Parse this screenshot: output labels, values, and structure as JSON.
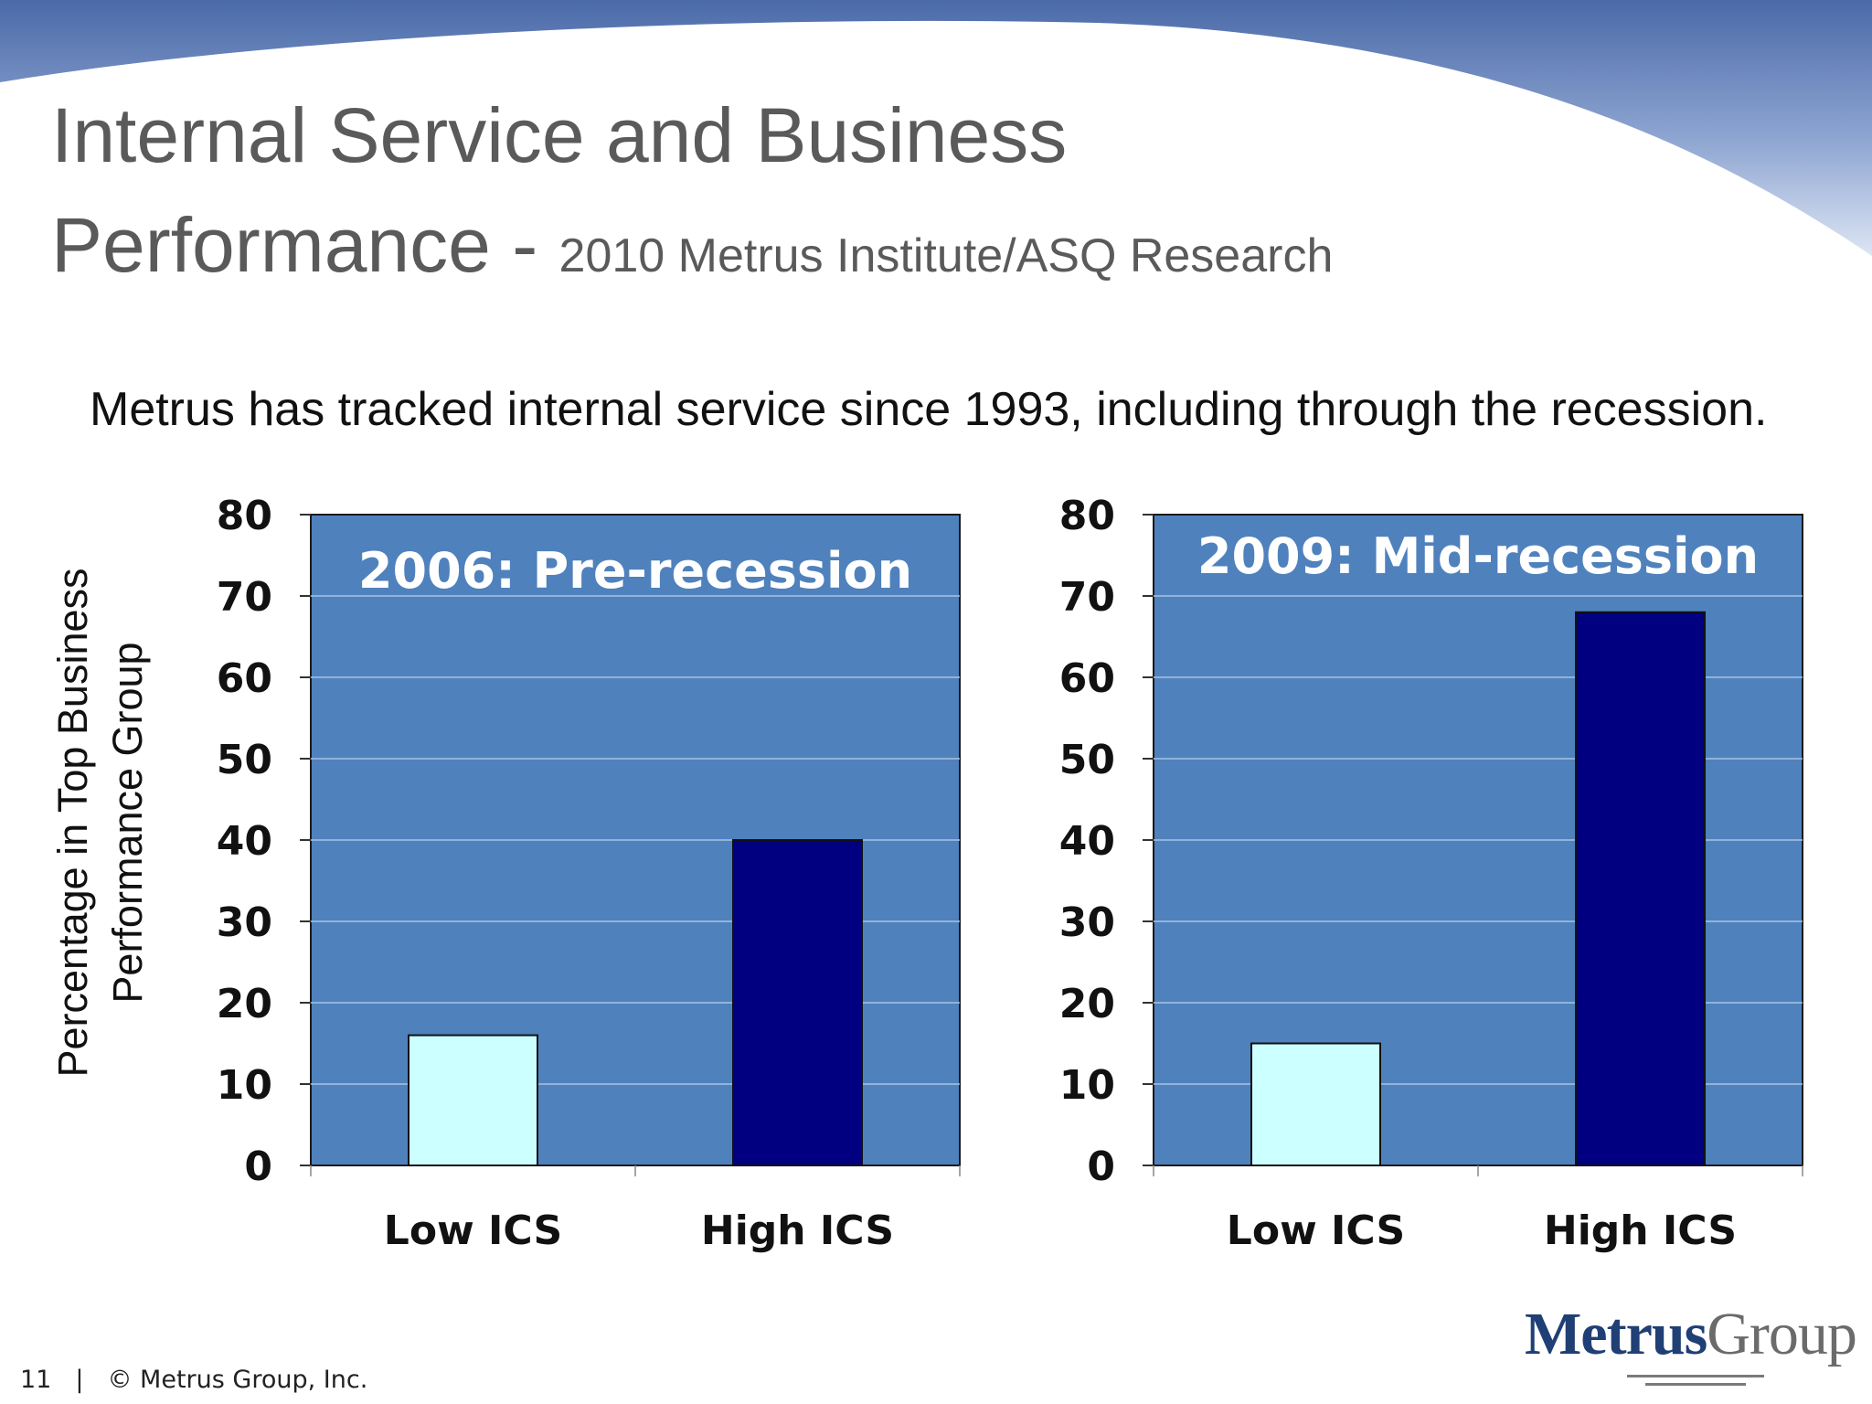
{
  "slide": {
    "title_main": "Internal Service and Business",
    "title_line2": "Performance -",
    "title_sub": "2010 Metrus Institute/ASQ Research",
    "intro": "Metrus has tracked internal service since 1993, including through the recession.",
    "ylabel_line1": "Percentage in Top Business",
    "ylabel_line2": "Performance Group",
    "footer_page": "11",
    "footer_sep": "|",
    "footer_copyright": "© Metrus Group, Inc.",
    "logo_metrus": "Metrus",
    "logo_group": "Group"
  },
  "colors": {
    "plot_bg": "#4f81bd",
    "low_ics": "#ccffff",
    "high_ics": "#000080",
    "title_text": "#5a5a5a",
    "header_band": "#4a6aa8"
  },
  "chart_data": [
    {
      "type": "bar",
      "title": "2006: Pre-recession",
      "categories": [
        "Low ICS",
        "High ICS"
      ],
      "values": [
        16,
        40
      ],
      "ylim": [
        0,
        80
      ],
      "yticks": [
        0,
        10,
        20,
        30,
        40,
        50,
        60,
        70,
        80
      ],
      "grid": true,
      "bar_colors": [
        "#ccffff",
        "#000080"
      ]
    },
    {
      "type": "bar",
      "title": "2009: Mid-recession",
      "categories": [
        "Low ICS",
        "High ICS"
      ],
      "values": [
        15,
        68
      ],
      "ylim": [
        0,
        80
      ],
      "yticks": [
        0,
        10,
        20,
        30,
        40,
        50,
        60,
        70,
        80
      ],
      "grid": true,
      "bar_colors": [
        "#ccffff",
        "#000080"
      ]
    }
  ]
}
